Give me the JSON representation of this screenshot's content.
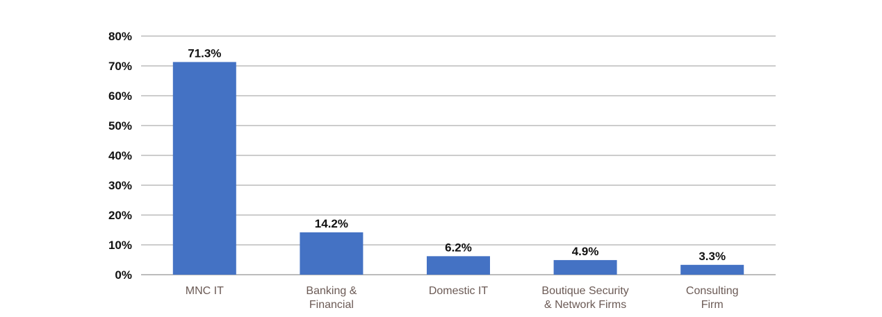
{
  "chart_data": {
    "type": "bar",
    "categories": [
      [
        "MNC IT"
      ],
      [
        "Banking &",
        "Financial"
      ],
      [
        "Domestic IT"
      ],
      [
        "Boutique Security",
        "& Network Firms"
      ],
      [
        "Consulting",
        "Firm"
      ]
    ],
    "values": [
      71.3,
      14.2,
      6.2,
      4.9,
      3.3
    ],
    "data_labels": [
      "71.3%",
      "14.2%",
      "6.2%",
      "4.9%",
      "3.3%"
    ],
    "ylim": [
      0,
      80
    ],
    "yticks": [
      0,
      10,
      20,
      30,
      40,
      50,
      60,
      70,
      80
    ],
    "ytick_labels": [
      "0%",
      "10%",
      "20%",
      "30%",
      "40%",
      "50%",
      "60%",
      "70%",
      "80%"
    ],
    "grid": true,
    "bar_color": "#4472c4"
  }
}
